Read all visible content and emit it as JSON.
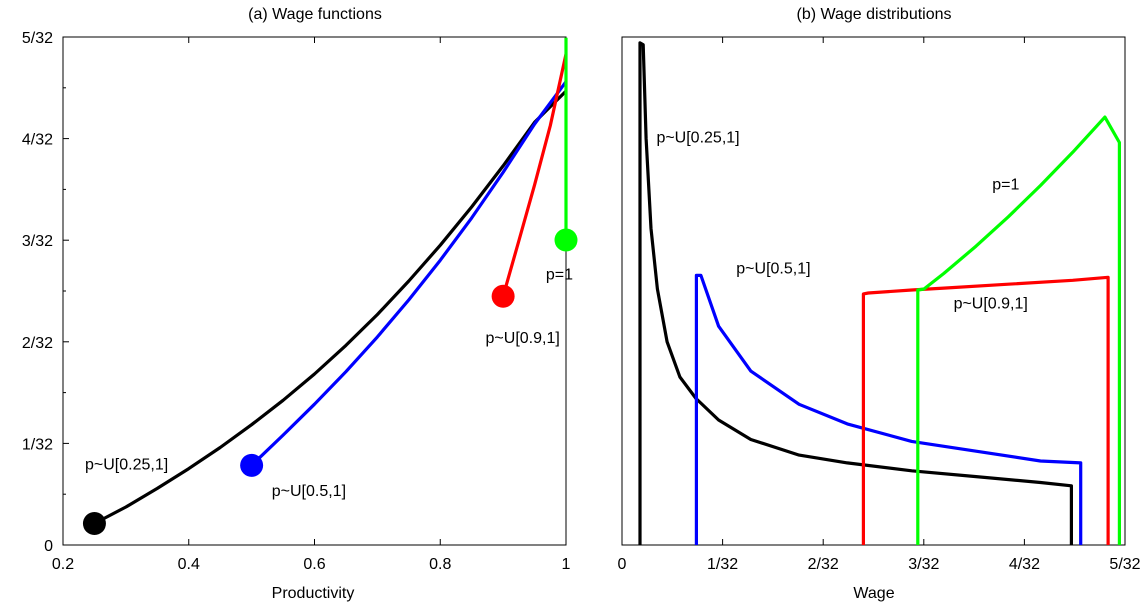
{
  "colors": {
    "p_025_1": "#000000",
    "p_05_1": "#0000ff",
    "p_09_1": "#ff0000",
    "p_1": "#00ff00"
  },
  "chart_data": [
    {
      "type": "line",
      "title": "(a) Wage functions",
      "xlabel": "Productivity",
      "ylabel": "",
      "xlim": [
        0.2,
        1.0
      ],
      "ylim": [
        0,
        0.15625
      ],
      "xticks": [
        0.2,
        0.4,
        0.6,
        0.8,
        1.0
      ],
      "xtick_labels": [
        "0.2",
        "0.4",
        "0.6",
        "0.8",
        "1"
      ],
      "yticks": [
        0,
        0.03125,
        0.0625,
        0.09375,
        0.125,
        0.15625
      ],
      "ytick_labels": [
        "0",
        "1/32",
        "2/32",
        "3/32",
        "4/32",
        "5/32"
      ],
      "grid": false,
      "series": [
        {
          "name": "p~U[0.25,1]",
          "color_key": "p_025_1",
          "x": [
            0.25,
            0.3,
            0.35,
            0.4,
            0.45,
            0.5,
            0.55,
            0.6,
            0.65,
            0.7,
            0.75,
            0.8,
            0.85,
            0.9,
            0.95,
            1.0
          ],
          "y": [
            0.0066,
            0.0117,
            0.0174,
            0.0235,
            0.03,
            0.037,
            0.0445,
            0.0526,
            0.0614,
            0.0709,
            0.0812,
            0.0922,
            0.104,
            0.1166,
            0.13,
            0.1396
          ],
          "start_marker": [
            0.25,
            0.0066
          ]
        },
        {
          "name": "p~U[0.5,1]",
          "color_key": "p_05_1",
          "x": [
            0.5,
            0.55,
            0.6,
            0.65,
            0.7,
            0.75,
            0.8,
            0.85,
            0.9,
            0.95,
            1.0
          ],
          "y": [
            0.0245,
            0.0338,
            0.0433,
            0.0533,
            0.064,
            0.0754,
            0.0876,
            0.1006,
            0.1146,
            0.1295,
            0.1425
          ],
          "start_marker": [
            0.5,
            0.0245
          ]
        },
        {
          "name": "p~U[0.9,1]",
          "color_key": "p_09_1",
          "x": [
            0.9,
            0.925,
            0.95,
            0.975,
            1.0
          ],
          "y": [
            0.0765,
            0.0935,
            0.1108,
            0.129,
            0.151
          ],
          "start_marker": [
            0.9,
            0.0765
          ]
        },
        {
          "name": "p=1",
          "color_key": "p_1",
          "x": [
            1.0,
            1.0
          ],
          "y": [
            0.0938,
            0.156
          ],
          "start_marker": [
            1.0,
            0.0938
          ]
        }
      ],
      "annotations": [
        {
          "text": "p~U[0.25,1]",
          "x": 0.235,
          "y": 0.0232
        },
        {
          "text": "p~U[0.5,1]",
          "x": 0.532,
          "y": 0.0151
        },
        {
          "text": "p~U[0.9,1]",
          "x": 0.872,
          "y": 0.0621
        },
        {
          "text": "p=1",
          "x": 0.968,
          "y": 0.0816
        }
      ]
    },
    {
      "type": "line",
      "title": "(b) Wage distributions",
      "xlabel": "Wage",
      "ylabel": "",
      "xlim": [
        0,
        0.15625
      ],
      "xticks": [
        0,
        0.03125,
        0.0625,
        0.09375,
        0.125,
        0.15625
      ],
      "xtick_labels": [
        "0",
        "1/32",
        "2/32",
        "3/32",
        "4/32",
        "5/32"
      ],
      "ylim": [
        0,
        26
      ],
      "yticks": [],
      "grid": false,
      "series": [
        {
          "name": "p~U[0.25,1]",
          "color_key": "p_025_1",
          "x": [
            0.0056,
            0.0056,
            0.0066,
            0.0075,
            0.009,
            0.011,
            0.014,
            0.018,
            0.023,
            0.03,
            0.04,
            0.055,
            0.07,
            0.09,
            0.11,
            0.13,
            0.1396,
            0.1396
          ],
          "y": [
            0,
            25.7,
            25.6,
            20.8,
            16.2,
            13.1,
            10.4,
            8.6,
            7.5,
            6.4,
            5.4,
            4.6,
            4.2,
            3.8,
            3.5,
            3.2,
            3.03,
            0
          ]
        },
        {
          "name": "p~U[0.5,1]",
          "color_key": "p_05_1",
          "x": [
            0.0231,
            0.0231,
            0.0245,
            0.03,
            0.04,
            0.055,
            0.07,
            0.09,
            0.11,
            0.13,
            0.1425,
            0.1425
          ],
          "y": [
            0,
            13.8,
            13.8,
            11.2,
            8.9,
            7.2,
            6.2,
            5.3,
            4.8,
            4.3,
            4.2,
            0
          ]
        },
        {
          "name": "p~U[0.9,1]",
          "color_key": "p_09_1",
          "x": [
            0.075,
            0.075,
            0.0765,
            0.09,
            0.1,
            0.12,
            0.14,
            0.151,
            0.151
          ],
          "y": [
            0,
            12.85,
            12.9,
            13.05,
            13.15,
            13.35,
            13.55,
            13.7,
            0
          ]
        },
        {
          "name": "p=1",
          "color_key": "p_1",
          "x": [
            0.0919,
            0.0919,
            0.0938,
            0.1,
            0.11,
            0.12,
            0.13,
            0.14,
            0.15,
            0.1545,
            0.1545
          ],
          "y": [
            0,
            13.05,
            13.1,
            13.9,
            15.3,
            16.8,
            18.4,
            20.1,
            21.9,
            20.6,
            0
          ]
        }
      ],
      "annotations": [
        {
          "text": "p~U[0.25,1]",
          "x": 0.0107,
          "y": 20.6
        },
        {
          "text": "p~U[0.5,1]",
          "x": 0.0355,
          "y": 13.9
        },
        {
          "text": "p~U[0.9,1]",
          "x": 0.103,
          "y": 12.1
        },
        {
          "text": "p=1",
          "x": 0.115,
          "y": 18.2
        }
      ]
    }
  ]
}
